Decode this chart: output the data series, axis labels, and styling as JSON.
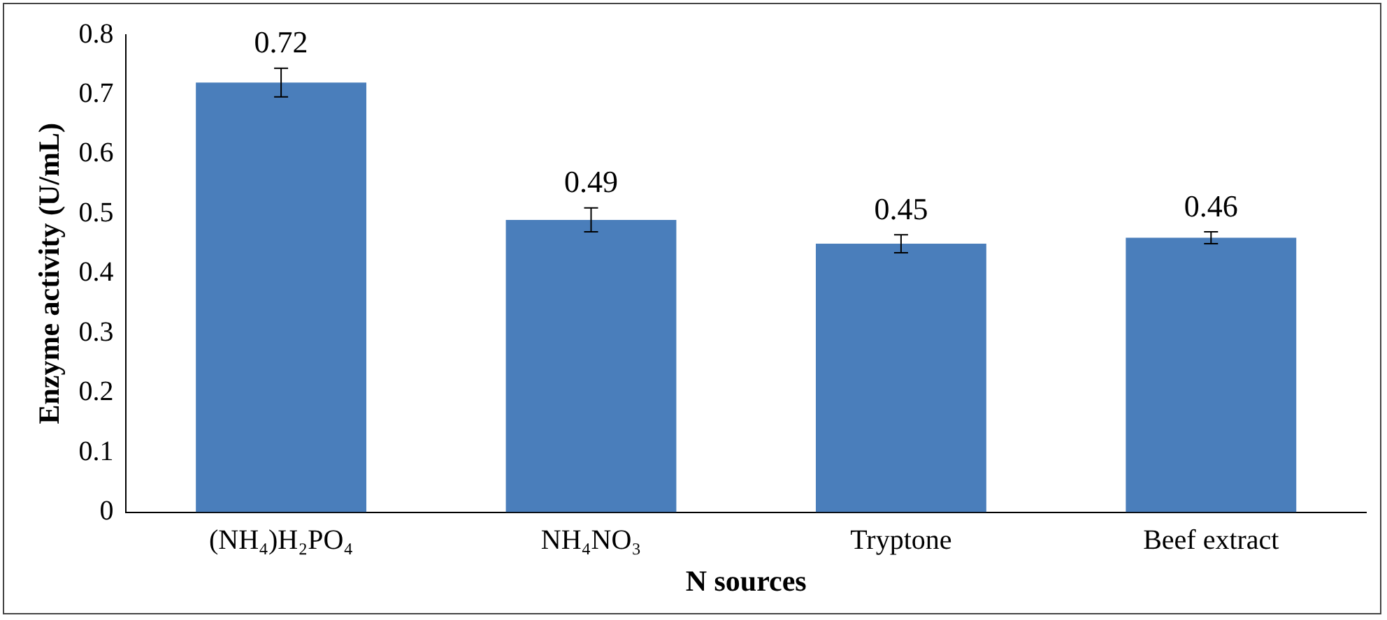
{
  "chart_data": {
    "type": "bar",
    "xlabel": "N sources",
    "ylabel": "Enzyme activity (U/mL)",
    "categories": [
      "(NH₄)H₂PO₄",
      "NH₄NO₃",
      "Tryptone",
      "Beef extract"
    ],
    "values": [
      0.72,
      0.49,
      0.45,
      0.46
    ],
    "errors": [
      0.024,
      0.02,
      0.015,
      0.01
    ],
    "color": "#4a7ebb",
    "data_labels": true,
    "grid": false,
    "legend": false,
    "ylim": [
      0,
      0.8
    ],
    "yticks": [
      0,
      0.1,
      0.2,
      0.3,
      0.4,
      0.5,
      0.6,
      0.7,
      0.8
    ]
  }
}
